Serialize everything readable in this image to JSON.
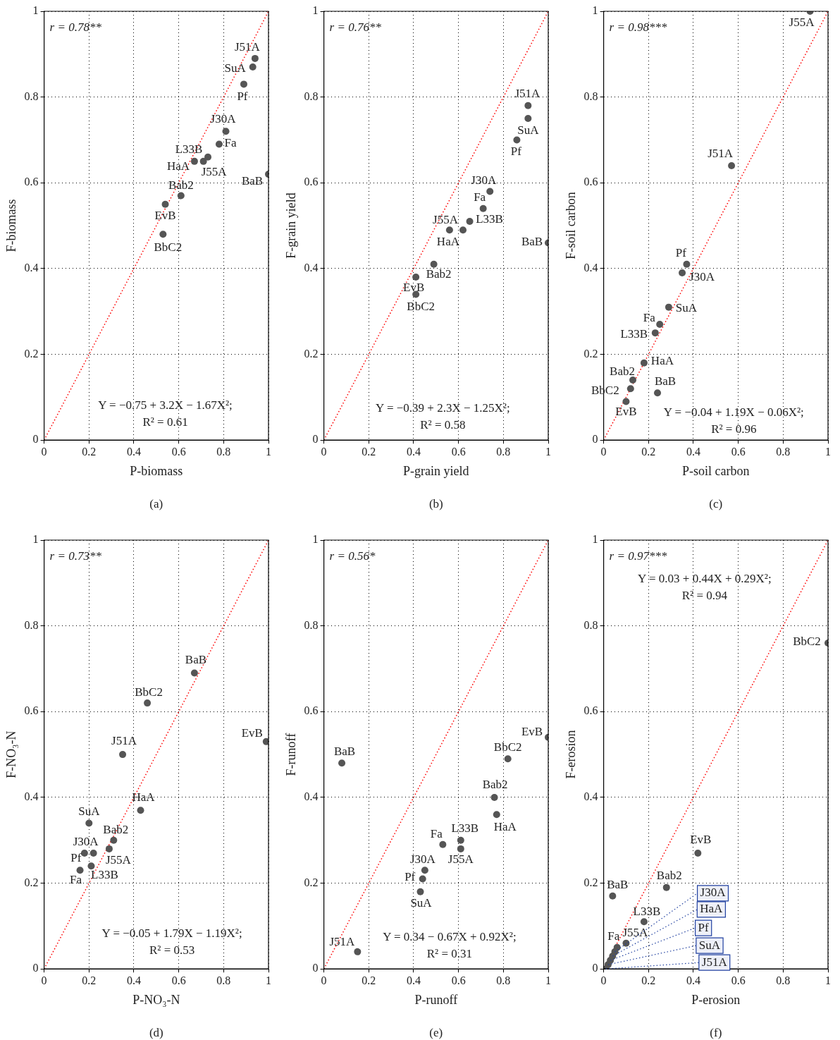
{
  "chart_data": [
    {
      "type": "scatter",
      "xlabel": "P-biomass",
      "ylabel": "F-biomass",
      "xlim": [
        0,
        1
      ],
      "ylim": [
        0,
        1
      ],
      "xticks": [
        0,
        0.2,
        0.4,
        0.6,
        0.8,
        1
      ],
      "yticks": [
        0,
        0.2,
        0.4,
        0.6,
        0.8,
        1
      ],
      "grid": true,
      "marker": "circle",
      "series": [
        {
          "type": "scatter",
          "color": "#555555",
          "x": [
            0.94,
            0.93,
            0.89,
            0.81,
            0.78,
            0.73,
            0.67,
            0.71,
            1.0,
            0.61,
            0.54,
            0.53
          ],
          "values": [
            0.89,
            0.87,
            0.83,
            0.72,
            0.69,
            0.66,
            0.65,
            0.65,
            0.62,
            0.57,
            0.55,
            0.48
          ]
        },
        {
          "type": "line",
          "color": "#ff0000",
          "line_style": "dotted",
          "marker": "none",
          "x": [
            0,
            1
          ],
          "values": [
            0,
            1
          ]
        }
      ],
      "annotations": [
        "r = 0.78**",
        "Y = −0.75 + 3.2X − 1.67X²;",
        "R² = 0.61",
        "(a)",
        {
          "text": "J51A",
          "x": 0.94,
          "y": 0.89
        },
        {
          "text": "SuA",
          "x": 0.93,
          "y": 0.87
        },
        {
          "text": "Pf",
          "x": 0.89,
          "y": 0.83
        },
        {
          "text": "J30A",
          "x": 0.81,
          "y": 0.72
        },
        {
          "text": "Fa",
          "x": 0.78,
          "y": 0.69
        },
        {
          "text": "L33B",
          "x": 0.73,
          "y": 0.66
        },
        {
          "text": "HaA",
          "x": 0.67,
          "y": 0.65
        },
        {
          "text": "J55A",
          "x": 0.71,
          "y": 0.65
        },
        {
          "text": "BaB",
          "x": 1.0,
          "y": 0.62
        },
        {
          "text": "Bab2",
          "x": 0.61,
          "y": 0.57
        },
        {
          "text": "EvB",
          "x": 0.54,
          "y": 0.55
        },
        {
          "text": "BbC2",
          "x": 0.53,
          "y": 0.48
        }
      ]
    },
    {
      "type": "scatter",
      "xlabel": "P-grain yield",
      "ylabel": "F-grain yield",
      "xlim": [
        0,
        1
      ],
      "ylim": [
        0,
        1
      ],
      "xticks": [
        0,
        0.2,
        0.4,
        0.6,
        0.8,
        1
      ],
      "yticks": [
        0,
        0.2,
        0.4,
        0.6,
        0.8,
        1
      ],
      "grid": true,
      "marker": "circle",
      "series": [
        {
          "type": "scatter",
          "color": "#555555",
          "x": [
            0.91,
            0.91,
            0.86,
            0.74,
            0.71,
            0.65,
            0.62,
            0.56,
            1.0,
            0.49,
            0.41,
            0.41
          ],
          "values": [
            0.78,
            0.75,
            0.7,
            0.58,
            0.54,
            0.51,
            0.49,
            0.49,
            0.46,
            0.41,
            0.38,
            0.34
          ]
        },
        {
          "type": "line",
          "color": "#ff0000",
          "line_style": "dotted",
          "marker": "none",
          "x": [
            0,
            1
          ],
          "values": [
            0,
            1
          ]
        }
      ],
      "annotations": [
        "r = 0.76**",
        "Y = −0.39 + 2.3X − 1.25X²;",
        "R² = 0.58",
        "(b)",
        {
          "text": "J51A",
          "x": 0.91,
          "y": 0.78
        },
        {
          "text": "SuA",
          "x": 0.91,
          "y": 0.75
        },
        {
          "text": "Pf",
          "x": 0.86,
          "y": 0.7
        },
        {
          "text": "J30A",
          "x": 0.74,
          "y": 0.58
        },
        {
          "text": "Fa",
          "x": 0.71,
          "y": 0.54
        },
        {
          "text": "L33B",
          "x": 0.65,
          "y": 0.51
        },
        {
          "text": "J55A",
          "x": 0.62,
          "y": 0.49
        },
        {
          "text": "HaA",
          "x": 0.56,
          "y": 0.49
        },
        {
          "text": "BaB",
          "x": 1.0,
          "y": 0.46
        },
        {
          "text": "Bab2",
          "x": 0.49,
          "y": 0.41
        },
        {
          "text": "EvB",
          "x": 0.41,
          "y": 0.38
        },
        {
          "text": "BbC2",
          "x": 0.41,
          "y": 0.34
        }
      ]
    },
    {
      "type": "scatter",
      "xlabel": "P-soil carbon",
      "ylabel": "F-soil carbon",
      "xlim": [
        0,
        1
      ],
      "ylim": [
        0,
        1
      ],
      "xticks": [
        0,
        0.2,
        0.4,
        0.6,
        0.8,
        1
      ],
      "yticks": [
        0,
        0.2,
        0.4,
        0.6,
        0.8,
        1
      ],
      "grid": true,
      "marker": "circle",
      "series": [
        {
          "type": "scatter",
          "color": "#555555",
          "x": [
            0.92,
            0.57,
            0.37,
            0.35,
            0.29,
            0.25,
            0.23,
            0.18,
            0.13,
            0.12,
            0.24,
            0.1
          ],
          "values": [
            1.0,
            0.64,
            0.41,
            0.39,
            0.31,
            0.27,
            0.25,
            0.18,
            0.14,
            0.12,
            0.11,
            0.09
          ]
        },
        {
          "type": "line",
          "color": "#ff0000",
          "line_style": "dotted",
          "marker": "none",
          "x": [
            0,
            1
          ],
          "values": [
            0,
            1
          ]
        }
      ],
      "annotations": [
        "r = 0.98***",
        "Y = −0.04 + 1.19X − 0.06X²;",
        "R² = 0.96",
        "(c)",
        {
          "text": "J55A",
          "x": 0.92,
          "y": 1.0
        },
        {
          "text": "J51A",
          "x": 0.57,
          "y": 0.64
        },
        {
          "text": "Pf",
          "x": 0.37,
          "y": 0.41
        },
        {
          "text": "J30A",
          "x": 0.35,
          "y": 0.39
        },
        {
          "text": "SuA",
          "x": 0.29,
          "y": 0.31
        },
        {
          "text": "Fa",
          "x": 0.25,
          "y": 0.27
        },
        {
          "text": "L33B",
          "x": 0.23,
          "y": 0.25
        },
        {
          "text": "HaA",
          "x": 0.18,
          "y": 0.18
        },
        {
          "text": "Bab2",
          "x": 0.13,
          "y": 0.14
        },
        {
          "text": "BbC2",
          "x": 0.12,
          "y": 0.12
        },
        {
          "text": "BaB",
          "x": 0.24,
          "y": 0.11
        },
        {
          "text": "EvB",
          "x": 0.1,
          "y": 0.09
        }
      ]
    },
    {
      "type": "scatter",
      "xlabel": "P-NO₃-N",
      "ylabel": "F-NO₃-N",
      "xlim": [
        0,
        1
      ],
      "ylim": [
        0,
        1
      ],
      "xticks": [
        0,
        0.2,
        0.4,
        0.6,
        0.8,
        1
      ],
      "yticks": [
        0,
        0.2,
        0.4,
        0.6,
        0.8,
        1
      ],
      "grid": true,
      "marker": "circle",
      "series": [
        {
          "type": "scatter",
          "color": "#555555",
          "x": [
            0.67,
            0.46,
            0.35,
            0.99,
            0.2,
            0.43,
            0.31,
            0.29,
            0.22,
            0.18,
            0.21,
            0.16
          ],
          "values": [
            0.69,
            0.62,
            0.5,
            0.53,
            0.34,
            0.37,
            0.3,
            0.28,
            0.27,
            0.27,
            0.24,
            0.23
          ]
        },
        {
          "type": "line",
          "color": "#ff0000",
          "line_style": "dotted",
          "marker": "none",
          "x": [
            0,
            1
          ],
          "values": [
            0,
            1
          ]
        }
      ],
      "annotations": [
        "r = 0.73**",
        "Y = −0.05 + 1.79X − 1.19X²;",
        "R² = 0.53",
        "(d)",
        {
          "text": "BaB",
          "x": 0.67,
          "y": 0.69
        },
        {
          "text": "BbC2",
          "x": 0.46,
          "y": 0.62
        },
        {
          "text": "J51A",
          "x": 0.35,
          "y": 0.5
        },
        {
          "text": "EvB",
          "x": 0.99,
          "y": 0.53
        },
        {
          "text": "SuA",
          "x": 0.2,
          "y": 0.34
        },
        {
          "text": "HaA",
          "x": 0.43,
          "y": 0.37
        },
        {
          "text": "Bab2",
          "x": 0.31,
          "y": 0.3
        },
        {
          "text": "J55A",
          "x": 0.29,
          "y": 0.28
        },
        {
          "text": "J30A",
          "x": 0.22,
          "y": 0.27
        },
        {
          "text": "Pf",
          "x": 0.18,
          "y": 0.27
        },
        {
          "text": "L33B",
          "x": 0.21,
          "y": 0.24
        },
        {
          "text": "Fa",
          "x": 0.16,
          "y": 0.23
        }
      ]
    },
    {
      "type": "scatter",
      "xlabel": "P-runoff",
      "ylabel": "F-runoff",
      "xlim": [
        0,
        1
      ],
      "ylim": [
        0,
        1
      ],
      "xticks": [
        0,
        0.2,
        0.4,
        0.6,
        0.8,
        1
      ],
      "yticks": [
        0,
        0.2,
        0.4,
        0.6,
        0.8,
        1
      ],
      "grid": true,
      "marker": "circle",
      "series": [
        {
          "type": "scatter",
          "color": "#555555",
          "x": [
            0.08,
            0.15,
            1.0,
            0.82,
            0.76,
            0.77,
            0.53,
            0.61,
            0.61,
            0.45,
            0.44,
            0.43
          ],
          "values": [
            0.48,
            0.04,
            0.54,
            0.49,
            0.4,
            0.36,
            0.29,
            0.3,
            0.28,
            0.23,
            0.21,
            0.18
          ]
        },
        {
          "type": "line",
          "color": "#ff0000",
          "line_style": "dotted",
          "marker": "none",
          "x": [
            0,
            1
          ],
          "values": [
            0,
            1
          ]
        }
      ],
      "annotations": [
        "r = 0.56*",
        "Y = 0.34 − 0.67X + 0.92X²;",
        "R² = 0.31",
        "(e)",
        {
          "text": "BaB",
          "x": 0.08,
          "y": 0.48
        },
        {
          "text": "J51A",
          "x": 0.15,
          "y": 0.04
        },
        {
          "text": "EvB",
          "x": 1.0,
          "y": 0.54
        },
        {
          "text": "BbC2",
          "x": 0.82,
          "y": 0.49
        },
        {
          "text": "Bab2",
          "x": 0.76,
          "y": 0.4
        },
        {
          "text": "HaA",
          "x": 0.77,
          "y": 0.36
        },
        {
          "text": "Fa",
          "x": 0.53,
          "y": 0.29
        },
        {
          "text": "L33B",
          "x": 0.61,
          "y": 0.3
        },
        {
          "text": "J55A",
          "x": 0.61,
          "y": 0.28
        },
        {
          "text": "J30A",
          "x": 0.45,
          "y": 0.23
        },
        {
          "text": "Pf",
          "x": 0.44,
          "y": 0.21
        },
        {
          "text": "SuA",
          "x": 0.43,
          "y": 0.18
        }
      ]
    },
    {
      "type": "scatter",
      "xlabel": "P-erosion",
      "ylabel": "F-erosion",
      "xlim": [
        0,
        1
      ],
      "ylim": [
        0,
        1
      ],
      "xticks": [
        0,
        0.2,
        0.4,
        0.6,
        0.8,
        1
      ],
      "yticks": [
        0,
        0.2,
        0.4,
        0.6,
        0.8,
        1
      ],
      "grid": true,
      "marker": "circle",
      "series": [
        {
          "type": "scatter",
          "color": "#555555",
          "x": [
            1.0,
            0.42,
            0.28,
            0.04,
            0.18,
            0.1,
            0.06,
            0.05,
            0.04,
            0.03,
            0.02,
            0.01
          ],
          "values": [
            0.76,
            0.27,
            0.19,
            0.17,
            0.11,
            0.06,
            0.05,
            0.04,
            0.03,
            0.02,
            0.01,
            0.0
          ]
        },
        {
          "type": "line",
          "color": "#ff0000",
          "line_style": "dotted",
          "marker": "none",
          "x": [
            0,
            1
          ],
          "values": [
            0,
            1
          ]
        }
      ],
      "annotations": [
        "r = 0.97***",
        "Y = 0.03 + 0.44X + 0.29X²;",
        "R² = 0.94",
        "(f)",
        {
          "text": "BbC2",
          "x": 1.0,
          "y": 0.76
        },
        {
          "text": "EvB",
          "x": 0.42,
          "y": 0.27
        },
        {
          "text": "Bab2",
          "x": 0.28,
          "y": 0.19
        },
        {
          "text": "BaB",
          "x": 0.04,
          "y": 0.17
        },
        {
          "text": "L33B",
          "x": 0.18,
          "y": 0.11
        },
        {
          "text": "J55A",
          "x": 0.1,
          "y": 0.06
        },
        {
          "text": "Fa",
          "x": 0.06,
          "y": 0.05
        },
        {
          "text": "J30A",
          "x": 0.05,
          "y": 0.04
        },
        {
          "text": "HaA",
          "x": 0.04,
          "y": 0.03
        },
        {
          "text": "Pf",
          "x": 0.03,
          "y": 0.02
        },
        {
          "text": "SuA",
          "x": 0.02,
          "y": 0.01
        },
        {
          "text": "J51A",
          "x": 0.01,
          "y": 0.0
        }
      ]
    }
  ]
}
